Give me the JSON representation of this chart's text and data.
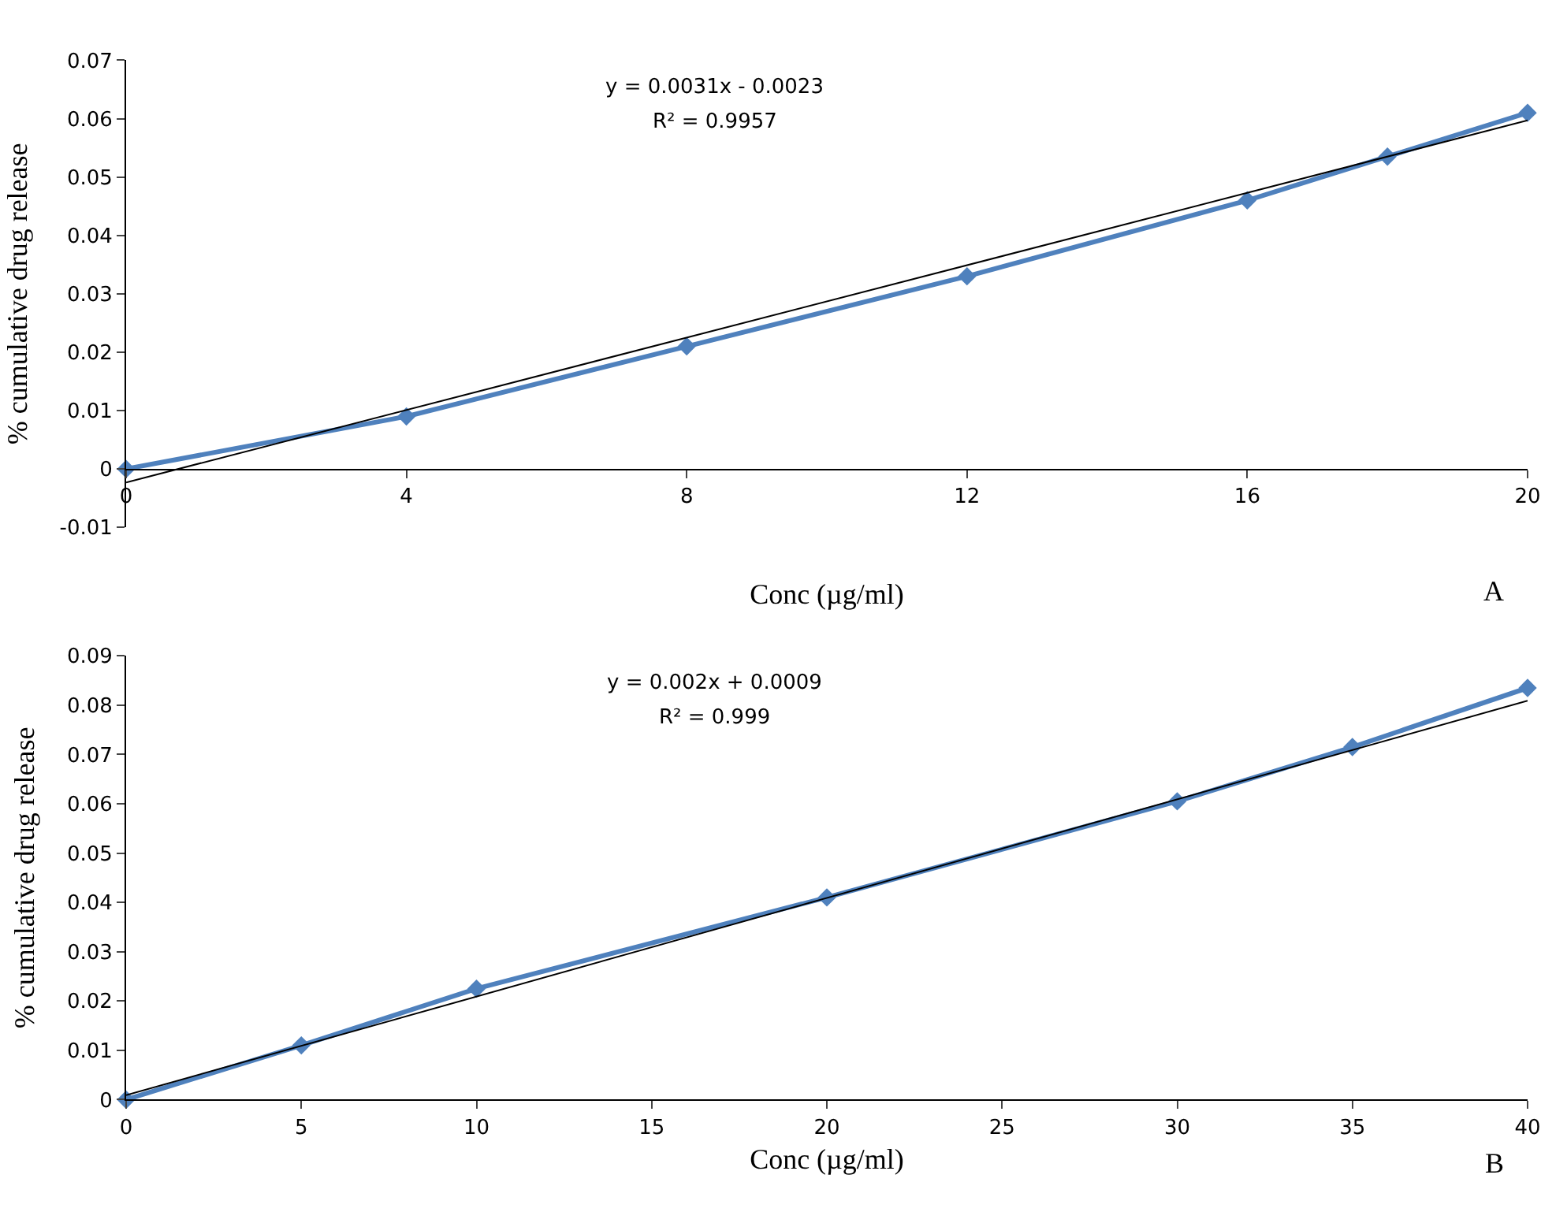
{
  "chart_data": [
    {
      "type": "line",
      "xlabel": "Conc (µg/ml)",
      "ylabel": "% cumulative drug release",
      "xlim": [
        0,
        20
      ],
      "xticks": [
        0,
        4,
        8,
        12,
        16,
        20
      ],
      "ylim": [
        -0.01,
        0.07
      ],
      "yticks": [
        -0.01,
        0,
        0.01,
        0.02,
        0.03,
        0.04,
        0.05,
        0.06,
        0.07
      ],
      "grid": false,
      "annotations": [
        "y = 0.0031x - 0.0023",
        "R² = 0.9957",
        "A"
      ],
      "series": [
        {
          "color": "#4f81bd",
          "marker": "diamond",
          "x": [
            0,
            4,
            8,
            12,
            16,
            18,
            20
          ],
          "values": [
            0,
            0.009,
            0.021,
            0.033,
            0.046,
            0.0535,
            0.061
          ]
        },
        {
          "color": "#000000",
          "marker": "none",
          "x": [
            0,
            20
          ],
          "values": [
            -0.0023,
            0.0597
          ]
        }
      ]
    },
    {
      "type": "line",
      "xlabel": "Conc (µg/ml)",
      "ylabel": "% cumulative drug release",
      "xlim": [
        0,
        40
      ],
      "xticks": [
        0,
        5,
        10,
        15,
        20,
        25,
        30,
        35,
        40
      ],
      "ylim": [
        0,
        0.09
      ],
      "yticks": [
        0,
        0.01,
        0.02,
        0.03,
        0.04,
        0.05,
        0.06,
        0.07,
        0.08,
        0.09
      ],
      "grid": false,
      "annotations": [
        "y = 0.002x + 0.0009",
        "R² = 0.999",
        "B"
      ],
      "series": [
        {
          "color": "#4f81bd",
          "marker": "diamond",
          "x": [
            0,
            5,
            10,
            20,
            30,
            35,
            40
          ],
          "values": [
            0,
            0.011,
            0.0225,
            0.041,
            0.0605,
            0.0715,
            0.0835
          ]
        },
        {
          "color": "#000000",
          "marker": "none",
          "x": [
            0,
            40
          ],
          "values": [
            0.0009,
            0.0809
          ]
        }
      ]
    }
  ]
}
